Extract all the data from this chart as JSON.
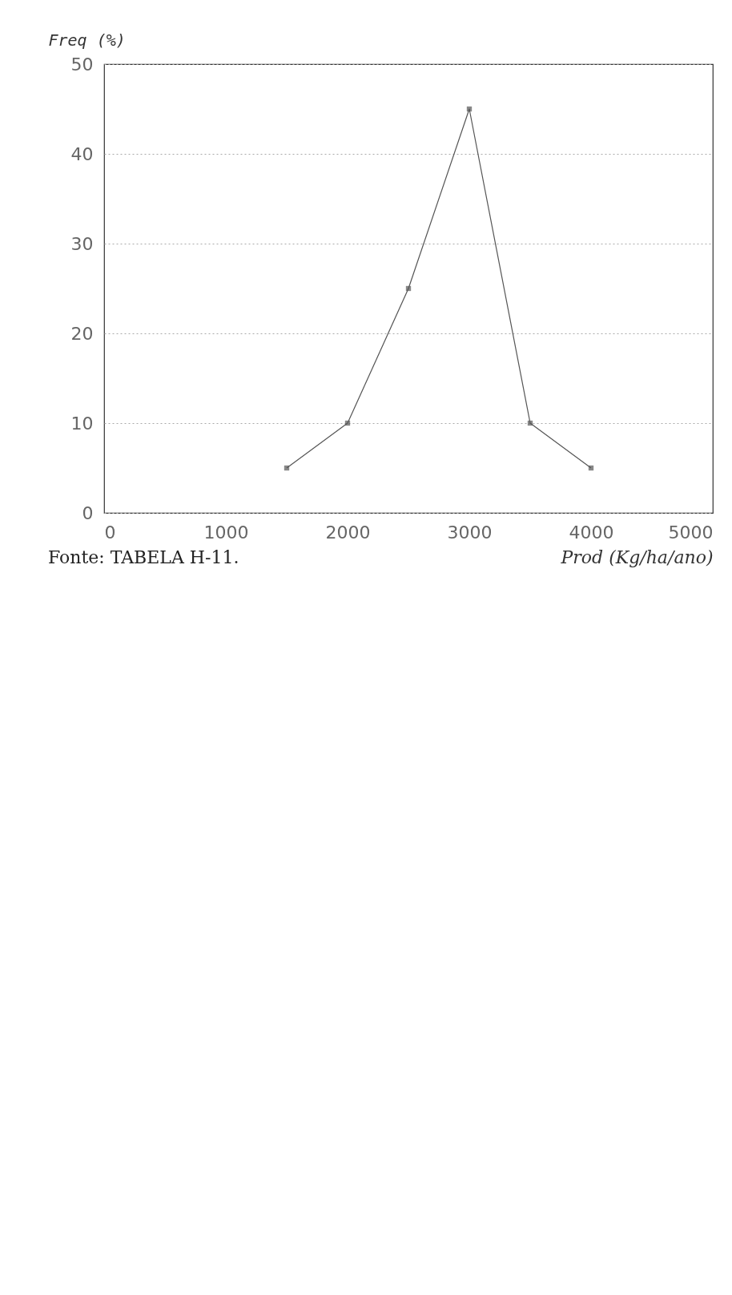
{
  "chart_data": {
    "type": "line",
    "xlabel": "Prod (Kg/ha/ano)",
    "ylabel": "Freq (%)",
    "x": [
      1500,
      2000,
      2500,
      3000,
      3500,
      4000
    ],
    "series": [
      {
        "color": "#555555",
        "values": [
          5,
          10,
          25,
          45,
          10,
          5
        ]
      }
    ],
    "xlim": [
      0,
      5000
    ],
    "xticks": [
      0,
      1000,
      2000,
      3000,
      4000,
      5000
    ],
    "ylim": [
      0,
      50
    ],
    "yticks": [
      0,
      10,
      20,
      30,
      40,
      50
    ],
    "grid": "y",
    "marker": "square",
    "line_style": "solid",
    "annotations": [
      "Fonte: TABELA H-11."
    ]
  }
}
